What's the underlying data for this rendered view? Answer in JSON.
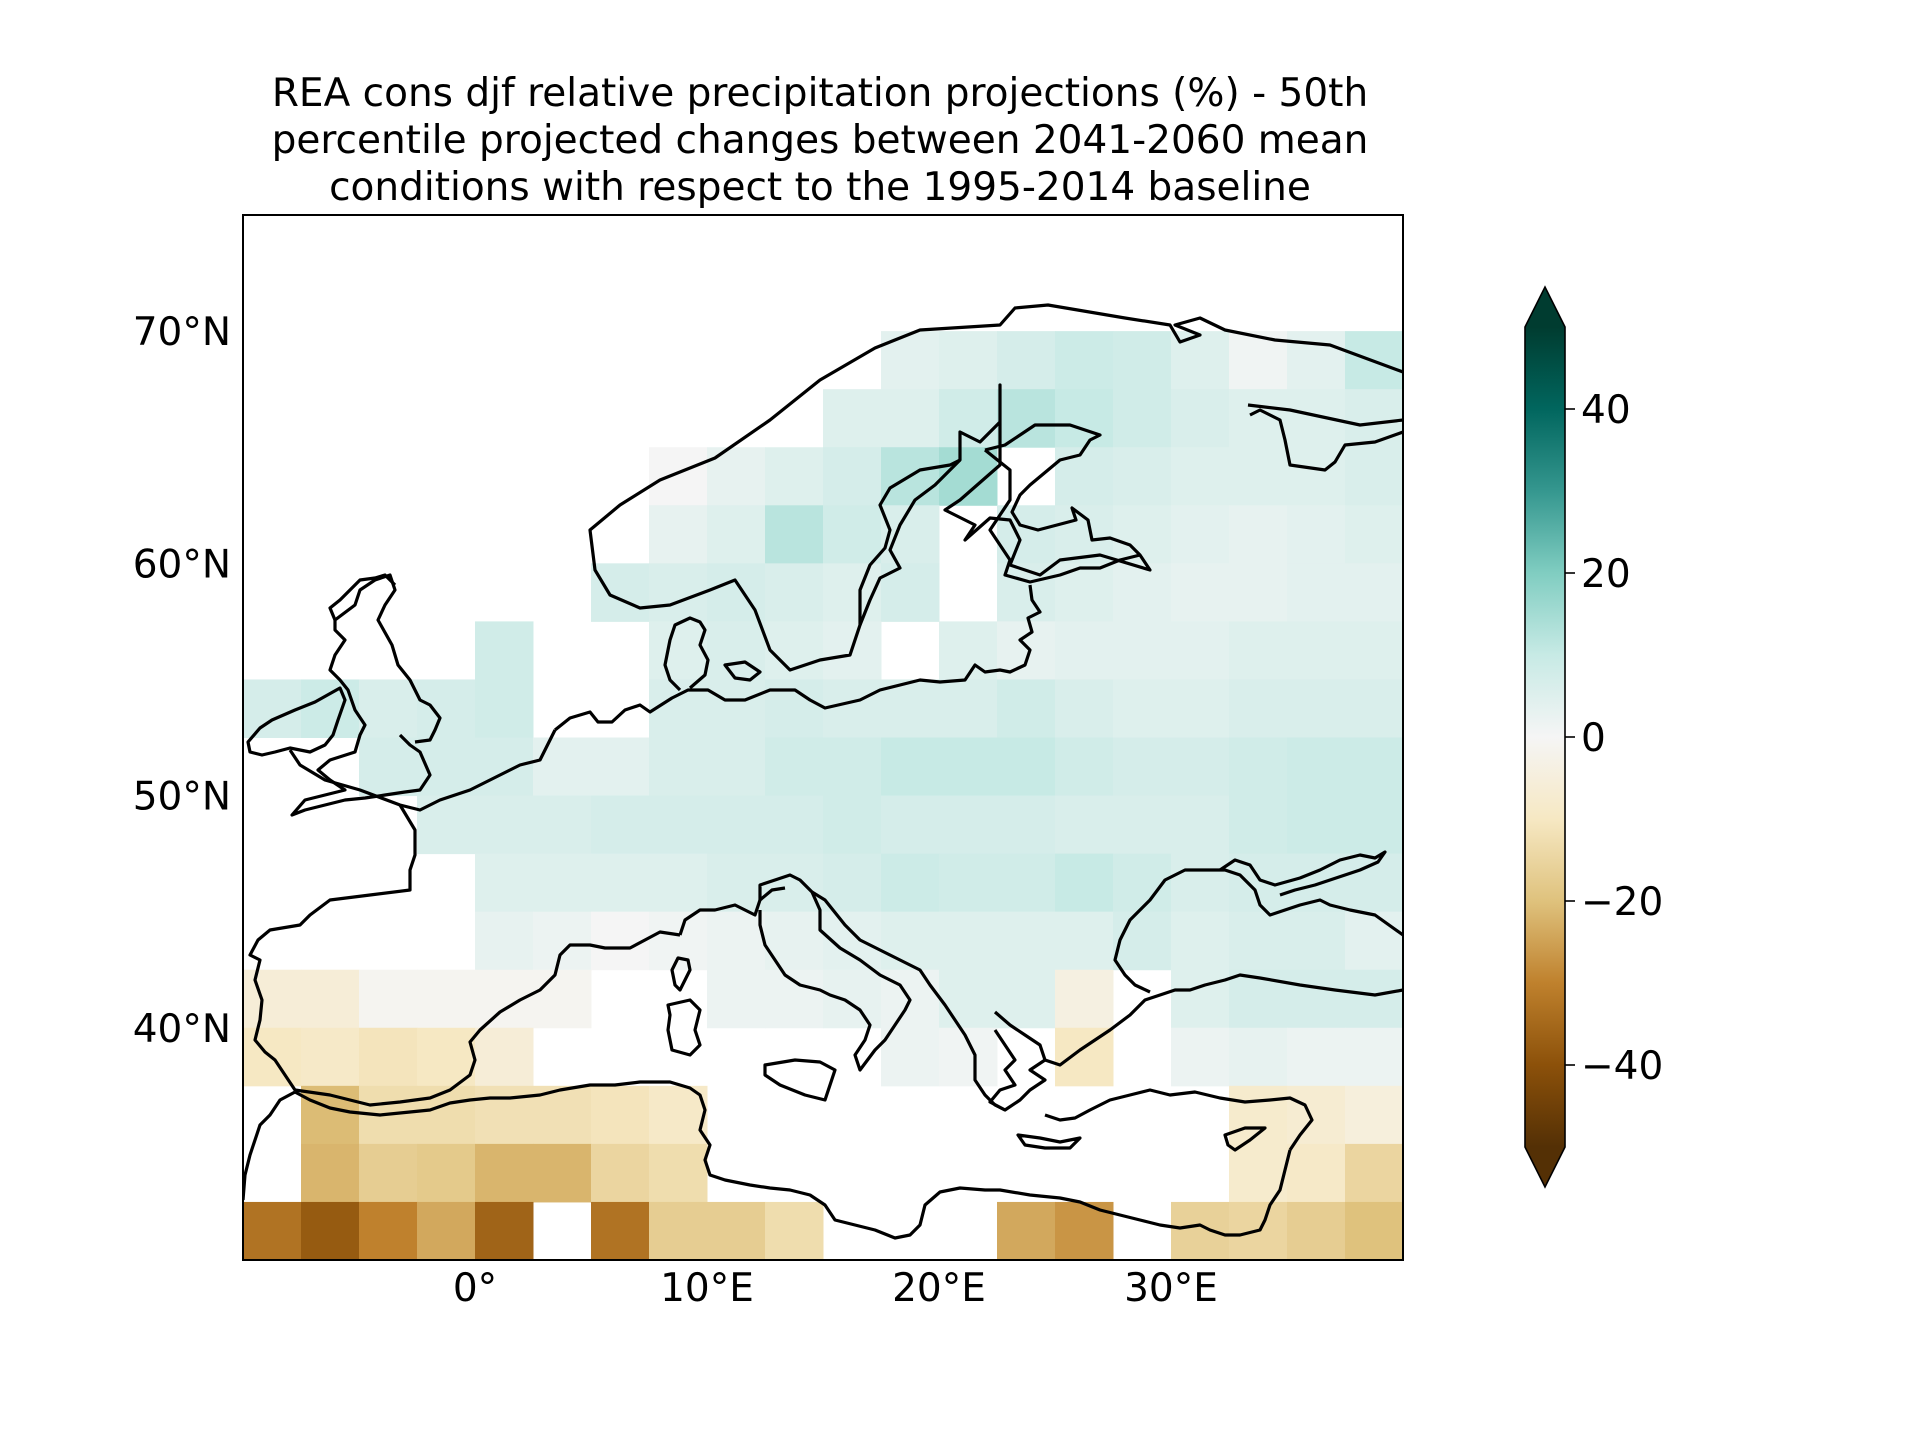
{
  "title_lines": [
    "REA cons djf relative precipitation projections (%) - 50th",
    "percentile projected changes between 2041-2060 mean",
    "conditions with respect to the 1995-2014 baseline"
  ],
  "map": {
    "projection": "PlateCarree",
    "lon_range": [
      -10,
      40
    ],
    "lat_range": [
      30,
      75
    ],
    "lat_ticks": [
      {
        "value": 70,
        "label": "70°N"
      },
      {
        "value": 60,
        "label": "60°N"
      },
      {
        "value": 50,
        "label": "50°N"
      },
      {
        "value": 40,
        "label": "40°N"
      }
    ],
    "lon_ticks": [
      {
        "value": 0,
        "label": "0°"
      },
      {
        "value": 10,
        "label": "10°E"
      },
      {
        "value": 20,
        "label": "20°E"
      },
      {
        "value": 30,
        "label": "30°E"
      }
    ],
    "cell_size_deg": 2.5
  },
  "colorbar": {
    "colormap": "BrBG",
    "vmin": -50,
    "vmax": 50,
    "extend": "both",
    "ticks": [
      {
        "value": 40,
        "label": "40"
      },
      {
        "value": 20,
        "label": "20"
      },
      {
        "value": 0,
        "label": "0"
      },
      {
        "value": -20,
        "label": "−20"
      },
      {
        "value": -40,
        "label": "−40"
      }
    ]
  },
  "chart_data": {
    "type": "heatmap",
    "description": "Gridded DJF relative precipitation change (%) on 2.5° cells over land; rows listed north to south, columns west to east; null = no data",
    "lons_west_edge": [
      -10,
      -7.5,
      -5,
      -2.5,
      0,
      2.5,
      5,
      7.5,
      10,
      12.5,
      15,
      17.5,
      20,
      22.5,
      25,
      27.5,
      30,
      32.5,
      35,
      37.5
    ],
    "lats_south_edge": [
      67.5,
      65,
      62.5,
      60,
      57.5,
      55,
      52.5,
      50,
      47.5,
      45,
      42.5,
      40,
      37.5,
      35,
      32.5,
      30
    ],
    "values": [
      [
        null,
        null,
        null,
        null,
        null,
        null,
        null,
        null,
        null,
        null,
        null,
        4,
        5,
        7,
        9,
        8,
        5,
        1,
        4,
        10
      ],
      [
        null,
        null,
        null,
        null,
        null,
        null,
        null,
        null,
        null,
        null,
        5,
        5,
        8,
        12,
        10,
        8,
        6,
        5,
        5,
        6
      ],
      [
        null,
        null,
        null,
        null,
        null,
        null,
        null,
        0,
        3,
        5,
        7,
        12,
        15,
        null,
        7,
        6,
        5,
        5,
        5,
        6
      ],
      [
        null,
        null,
        null,
        null,
        null,
        null,
        null,
        3,
        5,
        12,
        8,
        6,
        null,
        7,
        6,
        5,
        4,
        3,
        4,
        5
      ],
      [
        null,
        null,
        null,
        null,
        null,
        null,
        7,
        6,
        7,
        6,
        5,
        7,
        null,
        6,
        5,
        4,
        3,
        3,
        4,
        4
      ],
      [
        null,
        null,
        null,
        null,
        8,
        null,
        null,
        5,
        6,
        5,
        4,
        null,
        5,
        3,
        4,
        4,
        4,
        5,
        5,
        5
      ],
      [
        7,
        9,
        6,
        7,
        8,
        null,
        null,
        6,
        6,
        7,
        6,
        6,
        6,
        8,
        6,
        5,
        5,
        6,
        6,
        6
      ],
      [
        null,
        null,
        7,
        7,
        7,
        4,
        4,
        6,
        6,
        8,
        8,
        10,
        10,
        10,
        8,
        7,
        7,
        8,
        9,
        9
      ],
      [
        null,
        null,
        null,
        6,
        6,
        6,
        7,
        7,
        7,
        7,
        8,
        7,
        7,
        7,
        6,
        6,
        6,
        8,
        9,
        9
      ],
      [
        null,
        null,
        null,
        null,
        5,
        5,
        5,
        5,
        6,
        6,
        7,
        9,
        8,
        8,
        10,
        8,
        6,
        7,
        7,
        7
      ],
      [
        null,
        null,
        null,
        null,
        3,
        2,
        0,
        1,
        2,
        3,
        4,
        5,
        5,
        5,
        5,
        7,
        5,
        6,
        6,
        4
      ],
      [
        -6,
        -6,
        -1,
        -1,
        -1,
        -1,
        null,
        null,
        2,
        2,
        3,
        2,
        5,
        5,
        -4,
        null,
        5,
        7,
        7,
        7
      ],
      [
        -10,
        -9,
        -11,
        -10,
        -6,
        null,
        null,
        null,
        null,
        null,
        null,
        2,
        1,
        null,
        -10,
        null,
        2,
        3,
        2,
        2
      ],
      [
        null,
        -21,
        -13,
        -13,
        -12,
        -12,
        -11,
        -9,
        null,
        null,
        null,
        null,
        null,
        null,
        null,
        null,
        null,
        -8,
        -7,
        -5
      ],
      [
        null,
        -22,
        -17,
        -18,
        -22,
        -22,
        -15,
        -13,
        null,
        null,
        null,
        null,
        null,
        null,
        null,
        null,
        null,
        -8,
        -9,
        -15
      ],
      [
        -33,
        -38,
        -30,
        -24,
        -36,
        null,
        -33,
        -17,
        -17,
        -13,
        null,
        null,
        null,
        -24,
        -27,
        null,
        -16,
        -15,
        -17,
        -20
      ]
    ]
  }
}
